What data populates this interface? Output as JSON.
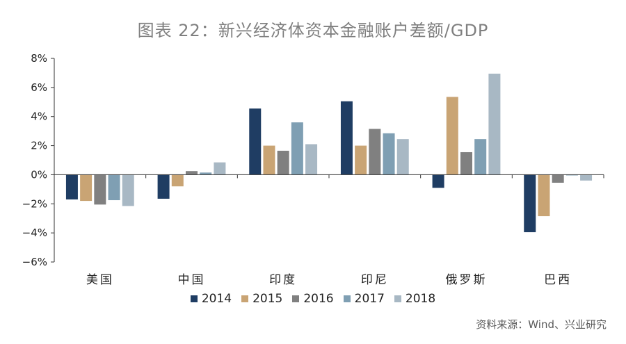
{
  "chart_data": {
    "type": "bar",
    "title": "图表 22：新兴经济体资本金融账户差额/GDP",
    "categories": [
      "美国",
      "中国",
      "印度",
      "印尼",
      "俄罗斯",
      "巴西"
    ],
    "series": [
      {
        "name": "2014",
        "color": "#1f3d63",
        "values": [
          -1.7,
          -1.65,
          4.55,
          5.05,
          -0.9,
          -3.95
        ]
      },
      {
        "name": "2015",
        "color": "#c9a474",
        "values": [
          -1.8,
          -0.8,
          2.0,
          2.0,
          5.35,
          -2.85
        ]
      },
      {
        "name": "2016",
        "color": "#808080",
        "values": [
          -2.05,
          0.25,
          1.65,
          3.15,
          1.55,
          -0.55
        ]
      },
      {
        "name": "2017",
        "color": "#7f9fb3",
        "values": [
          -1.75,
          0.15,
          3.6,
          2.85,
          2.45,
          -0.05
        ]
      },
      {
        "name": "2018",
        "color": "#a8b8c4",
        "values": [
          -2.15,
          0.85,
          2.1,
          2.45,
          6.95,
          -0.4
        ]
      }
    ],
    "ylim": [
      -6,
      8
    ],
    "yticks": [
      -6,
      -4,
      -2,
      0,
      2,
      4,
      6,
      8
    ],
    "ytick_labels": [
      "−6%",
      "−4%",
      "−2%",
      "0%",
      "2%",
      "4%",
      "6%",
      "8%"
    ],
    "xlabel": "",
    "ylabel": "",
    "legend_position": "bottom",
    "source": "资料来源：Wind、兴业研究"
  }
}
